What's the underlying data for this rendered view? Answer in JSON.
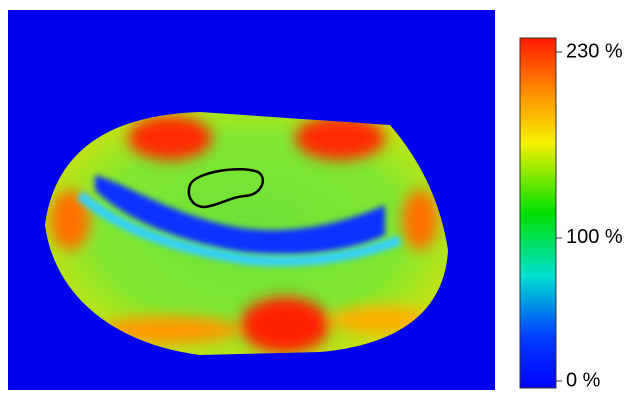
{
  "colorbar": {
    "range": [
      0,
      230
    ],
    "ticks": [
      {
        "value": 0,
        "label": "0 %"
      },
      {
        "value": 100,
        "label": "100 %"
      },
      {
        "value": 230,
        "label": "230 %"
      }
    ]
  }
}
